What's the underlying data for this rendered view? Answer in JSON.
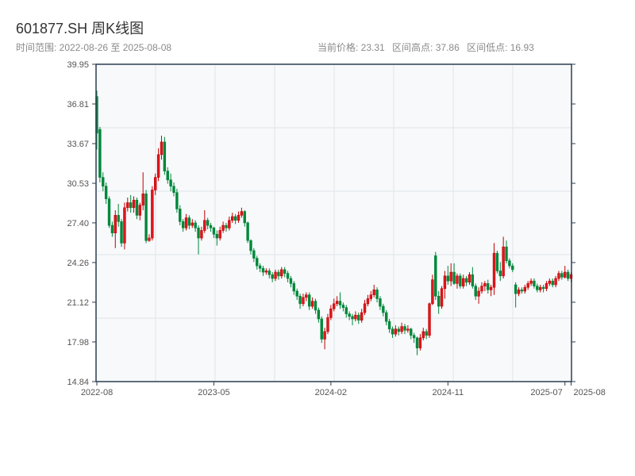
{
  "header": {
    "title": "601877.SH 周K线图",
    "range_label": "时间范围: 2022-08-26 至 2025-08-08",
    "current_price": "当前价格: 23.31",
    "range_high": "区间高点: 37.86",
    "range_low": "区间低点: 16.93"
  },
  "colors": {
    "up": "#e0161e",
    "up_border": "#c40000",
    "down": "#00873a",
    "axis": "#2c3e50",
    "plot_bg": "#f7f9fb",
    "grid": "#e2e5ea"
  },
  "chart_data": {
    "type": "candlestick",
    "interval": "weekly",
    "start_date": "2022-08-26",
    "end_date": "2025-08-08",
    "up_color_meaning": "red = close above open",
    "ylim": [
      14.84,
      39.95
    ],
    "yticks": [
      "14.84",
      "17.98",
      "21.12",
      "24.26",
      "27.40",
      "30.53",
      "33.67",
      "36.81",
      "39.95"
    ],
    "xticks": [
      {
        "date": "2022-08-26",
        "label": "2022-08"
      },
      {
        "date": "2023-05-19",
        "label": "2023-05"
      },
      {
        "date": "2024-02-09",
        "label": "2024-02"
      },
      {
        "date": "2024-11-01",
        "label": "2024-11"
      },
      {
        "date": "2025-07-25",
        "label": "2025-07"
      },
      {
        "date": "2025-08-08",
        "label": "2025-08"
      }
    ],
    "grid": true,
    "ohlc_fields": [
      "open",
      "high",
      "low",
      "close"
    ],
    "ohlc": [
      [
        37.4,
        37.86,
        33.2,
        34.5
      ],
      [
        34.8,
        35.0,
        30.6,
        31.0
      ],
      [
        31.0,
        31.4,
        29.9,
        30.3
      ],
      [
        30.3,
        30.6,
        28.9,
        29.3
      ],
      [
        29.3,
        29.5,
        27.0,
        27.2
      ],
      [
        27.2,
        27.5,
        26.3,
        26.6
      ],
      [
        26.6,
        28.4,
        25.4,
        28.0
      ],
      [
        28.0,
        28.9,
        27.1,
        27.5
      ],
      [
        27.5,
        27.7,
        25.5,
        25.8
      ],
      [
        25.8,
        29.0,
        25.3,
        28.6
      ],
      [
        28.6,
        29.4,
        28.3,
        29.0
      ],
      [
        29.0,
        29.6,
        28.2,
        28.6
      ],
      [
        28.6,
        29.5,
        28.2,
        29.2
      ],
      [
        29.2,
        29.4,
        27.7,
        28.0
      ],
      [
        28.0,
        29.0,
        27.6,
        28.8
      ],
      [
        28.8,
        31.4,
        28.4,
        29.7
      ],
      [
        29.7,
        30.0,
        25.8,
        26.0
      ],
      [
        26.0,
        26.5,
        25.9,
        26.2
      ],
      [
        26.2,
        30.3,
        26.0,
        30.0
      ],
      [
        30.0,
        31.3,
        29.6,
        31.0
      ],
      [
        31.0,
        33.3,
        30.7,
        32.8
      ],
      [
        32.8,
        34.3,
        32.4,
        33.8
      ],
      [
        33.8,
        34.2,
        31.2,
        31.5
      ],
      [
        31.5,
        31.8,
        30.5,
        30.8
      ],
      [
        30.8,
        31.3,
        29.9,
        30.3
      ],
      [
        30.3,
        30.6,
        29.5,
        29.8
      ],
      [
        29.8,
        30.1,
        28.2,
        28.5
      ],
      [
        28.5,
        28.8,
        27.2,
        27.5
      ],
      [
        27.5,
        27.7,
        26.7,
        27.0
      ],
      [
        27.0,
        28.1,
        26.8,
        27.8
      ],
      [
        27.8,
        28.0,
        26.9,
        27.2
      ],
      [
        27.2,
        27.7,
        27.0,
        27.4
      ],
      [
        27.4,
        27.6,
        26.7,
        27.0
      ],
      [
        27.0,
        27.2,
        24.9,
        26.2
      ],
      [
        26.2,
        27.1,
        26.0,
        26.8
      ],
      [
        26.8,
        28.4,
        26.6,
        27.6
      ],
      [
        27.6,
        27.8,
        26.9,
        27.2
      ],
      [
        27.2,
        27.4,
        26.7,
        27.0
      ],
      [
        27.0,
        27.1,
        26.2,
        26.5
      ],
      [
        26.5,
        26.8,
        25.6,
        26.2
      ],
      [
        26.2,
        27.1,
        26.0,
        26.8
      ],
      [
        26.8,
        27.5,
        26.6,
        27.2
      ],
      [
        27.2,
        27.4,
        26.7,
        27.0
      ],
      [
        27.0,
        27.9,
        26.8,
        27.6
      ],
      [
        27.6,
        28.2,
        27.4,
        27.9
      ],
      [
        27.9,
        28.1,
        27.3,
        27.6
      ],
      [
        27.6,
        28.3,
        27.4,
        28.0
      ],
      [
        28.0,
        28.6,
        27.8,
        28.3
      ],
      [
        28.3,
        28.4,
        27.1,
        27.4
      ],
      [
        27.4,
        27.5,
        25.8,
        26.0
      ],
      [
        26.0,
        26.1,
        24.9,
        25.2
      ],
      [
        25.2,
        25.4,
        24.3,
        24.6
      ],
      [
        24.6,
        24.8,
        23.7,
        24.0
      ],
      [
        24.0,
        24.2,
        23.5,
        23.8
      ],
      [
        23.8,
        24.0,
        23.2,
        23.5
      ],
      [
        23.5,
        23.8,
        23.3,
        23.6
      ],
      [
        23.6,
        23.8,
        23.0,
        23.3
      ],
      [
        23.3,
        23.5,
        22.7,
        23.0
      ],
      [
        23.0,
        23.7,
        22.8,
        23.5
      ],
      [
        23.5,
        23.7,
        22.9,
        23.2
      ],
      [
        23.2,
        23.9,
        23.0,
        23.7
      ],
      [
        23.7,
        23.9,
        23.1,
        23.4
      ],
      [
        23.4,
        23.6,
        22.7,
        23.0
      ],
      [
        23.0,
        23.2,
        22.3,
        22.6
      ],
      [
        22.6,
        22.8,
        21.7,
        22.0
      ],
      [
        22.0,
        22.2,
        21.3,
        21.6
      ],
      [
        21.6,
        21.8,
        20.6,
        21.0
      ],
      [
        21.0,
        21.8,
        20.8,
        21.5
      ],
      [
        21.5,
        21.9,
        21.2,
        21.7
      ],
      [
        21.7,
        21.9,
        20.5,
        20.8
      ],
      [
        20.8,
        21.5,
        20.6,
        21.2
      ],
      [
        21.2,
        21.4,
        20.2,
        20.5
      ],
      [
        20.5,
        20.7,
        19.5,
        19.8
      ],
      [
        19.8,
        20.0,
        17.9,
        18.2
      ],
      [
        18.2,
        19.1,
        17.4,
        18.8
      ],
      [
        18.8,
        20.2,
        18.6,
        19.9
      ],
      [
        19.9,
        20.9,
        19.7,
        20.6
      ],
      [
        20.6,
        21.4,
        20.4,
        21.0
      ],
      [
        21.0,
        21.6,
        20.8,
        21.2
      ],
      [
        21.2,
        21.9,
        20.6,
        20.9
      ],
      [
        20.9,
        21.1,
        20.4,
        20.7
      ],
      [
        20.7,
        20.9,
        19.9,
        20.2
      ],
      [
        20.2,
        20.4,
        19.7,
        20.0
      ],
      [
        20.0,
        20.2,
        19.3,
        19.8
      ],
      [
        19.8,
        20.4,
        19.6,
        20.1
      ],
      [
        20.1,
        20.3,
        19.4,
        19.7
      ],
      [
        19.7,
        20.6,
        19.5,
        20.3
      ],
      [
        20.3,
        21.3,
        20.1,
        21.0
      ],
      [
        21.0,
        21.7,
        20.8,
        21.4
      ],
      [
        21.4,
        22.0,
        21.2,
        21.7
      ],
      [
        21.7,
        22.5,
        21.5,
        22.1
      ],
      [
        22.1,
        22.3,
        21.1,
        21.4
      ],
      [
        21.4,
        21.6,
        20.5,
        20.8
      ],
      [
        20.8,
        21.0,
        20.0,
        20.3
      ],
      [
        20.3,
        20.5,
        19.3,
        19.6
      ],
      [
        19.6,
        19.8,
        18.7,
        19.0
      ],
      [
        19.0,
        19.2,
        18.3,
        18.6
      ],
      [
        18.6,
        19.3,
        18.4,
        19.0
      ],
      [
        19.0,
        19.2,
        18.5,
        18.8
      ],
      [
        18.8,
        19.5,
        18.6,
        19.2
      ],
      [
        19.2,
        19.4,
        18.6,
        18.9
      ],
      [
        18.9,
        19.3,
        18.7,
        19.0
      ],
      [
        19.0,
        19.1,
        18.2,
        18.5
      ],
      [
        18.5,
        18.7,
        17.9,
        18.3
      ],
      [
        18.3,
        18.4,
        16.93,
        17.5
      ],
      [
        17.5,
        18.6,
        17.3,
        18.3
      ],
      [
        18.3,
        19.1,
        18.1,
        18.8
      ],
      [
        18.8,
        19.0,
        18.2,
        18.5
      ],
      [
        18.5,
        21.1,
        18.3,
        21.0
      ],
      [
        21.0,
        23.3,
        20.9,
        22.9
      ],
      [
        24.8,
        25.1,
        21.3,
        21.6
      ],
      [
        21.6,
        22.0,
        20.2,
        20.8
      ],
      [
        20.8,
        22.4,
        20.6,
        22.2
      ],
      [
        22.2,
        23.6,
        21.4,
        23.2
      ],
      [
        23.2,
        24.0,
        22.5,
        22.8
      ],
      [
        22.8,
        24.2,
        22.4,
        23.5
      ],
      [
        23.5,
        24.2,
        22.5,
        22.6
      ],
      [
        22.6,
        23.4,
        22.2,
        23.2
      ],
      [
        23.2,
        23.4,
        22.2,
        22.4
      ],
      [
        22.4,
        23.3,
        22.2,
        23.0
      ],
      [
        23.0,
        23.2,
        22.4,
        22.7
      ],
      [
        22.7,
        23.5,
        22.5,
        23.3
      ],
      [
        23.3,
        23.9,
        22.2,
        22.4
      ],
      [
        22.4,
        22.6,
        21.3,
        21.6
      ],
      [
        21.6,
        22.3,
        21.0,
        22.0
      ],
      [
        22.0,
        22.7,
        21.8,
        22.4
      ],
      [
        22.4,
        22.8,
        22.0,
        22.6
      ],
      [
        22.6,
        22.9,
        21.8,
        22.1
      ],
      [
        22.1,
        22.5,
        21.6,
        22.3
      ],
      [
        22.3,
        25.8,
        21.7,
        25.0
      ],
      [
        25.0,
        25.2,
        23.4,
        23.6
      ],
      [
        23.6,
        24.3,
        22.8,
        23.2
      ],
      [
        23.2,
        26.3,
        23.0,
        25.5
      ],
      [
        25.5,
        26.0,
        24.2,
        24.4
      ],
      [
        24.4,
        24.6,
        23.8,
        24.0
      ],
      [
        24.0,
        24.2,
        23.5,
        23.7
      ],
      [
        22.5,
        22.7,
        20.7,
        21.8
      ],
      [
        21.8,
        22.3,
        21.6,
        22.1
      ],
      [
        22.1,
        22.3,
        21.8,
        22.0
      ],
      [
        22.0,
        22.5,
        21.8,
        22.3
      ],
      [
        22.3,
        22.8,
        22.1,
        22.6
      ],
      [
        22.6,
        23.0,
        22.4,
        22.8
      ],
      [
        22.8,
        23.0,
        22.2,
        22.4
      ],
      [
        22.4,
        22.6,
        21.9,
        22.1
      ],
      [
        22.1,
        22.5,
        21.9,
        22.3
      ],
      [
        22.3,
        22.5,
        21.9,
        22.2
      ],
      [
        22.2,
        22.8,
        22.0,
        22.6
      ],
      [
        22.6,
        23.0,
        22.4,
        22.8
      ],
      [
        22.8,
        23.0,
        22.3,
        22.5
      ],
      [
        22.5,
        23.2,
        22.3,
        23.0
      ],
      [
        23.0,
        23.6,
        22.8,
        23.4
      ],
      [
        23.4,
        23.6,
        22.9,
        23.1
      ],
      [
        23.1,
        24.0,
        23.0,
        23.5
      ],
      [
        23.5,
        23.7,
        22.8,
        23.0
      ],
      [
        23.0,
        23.5,
        22.7,
        23.31
      ]
    ]
  }
}
